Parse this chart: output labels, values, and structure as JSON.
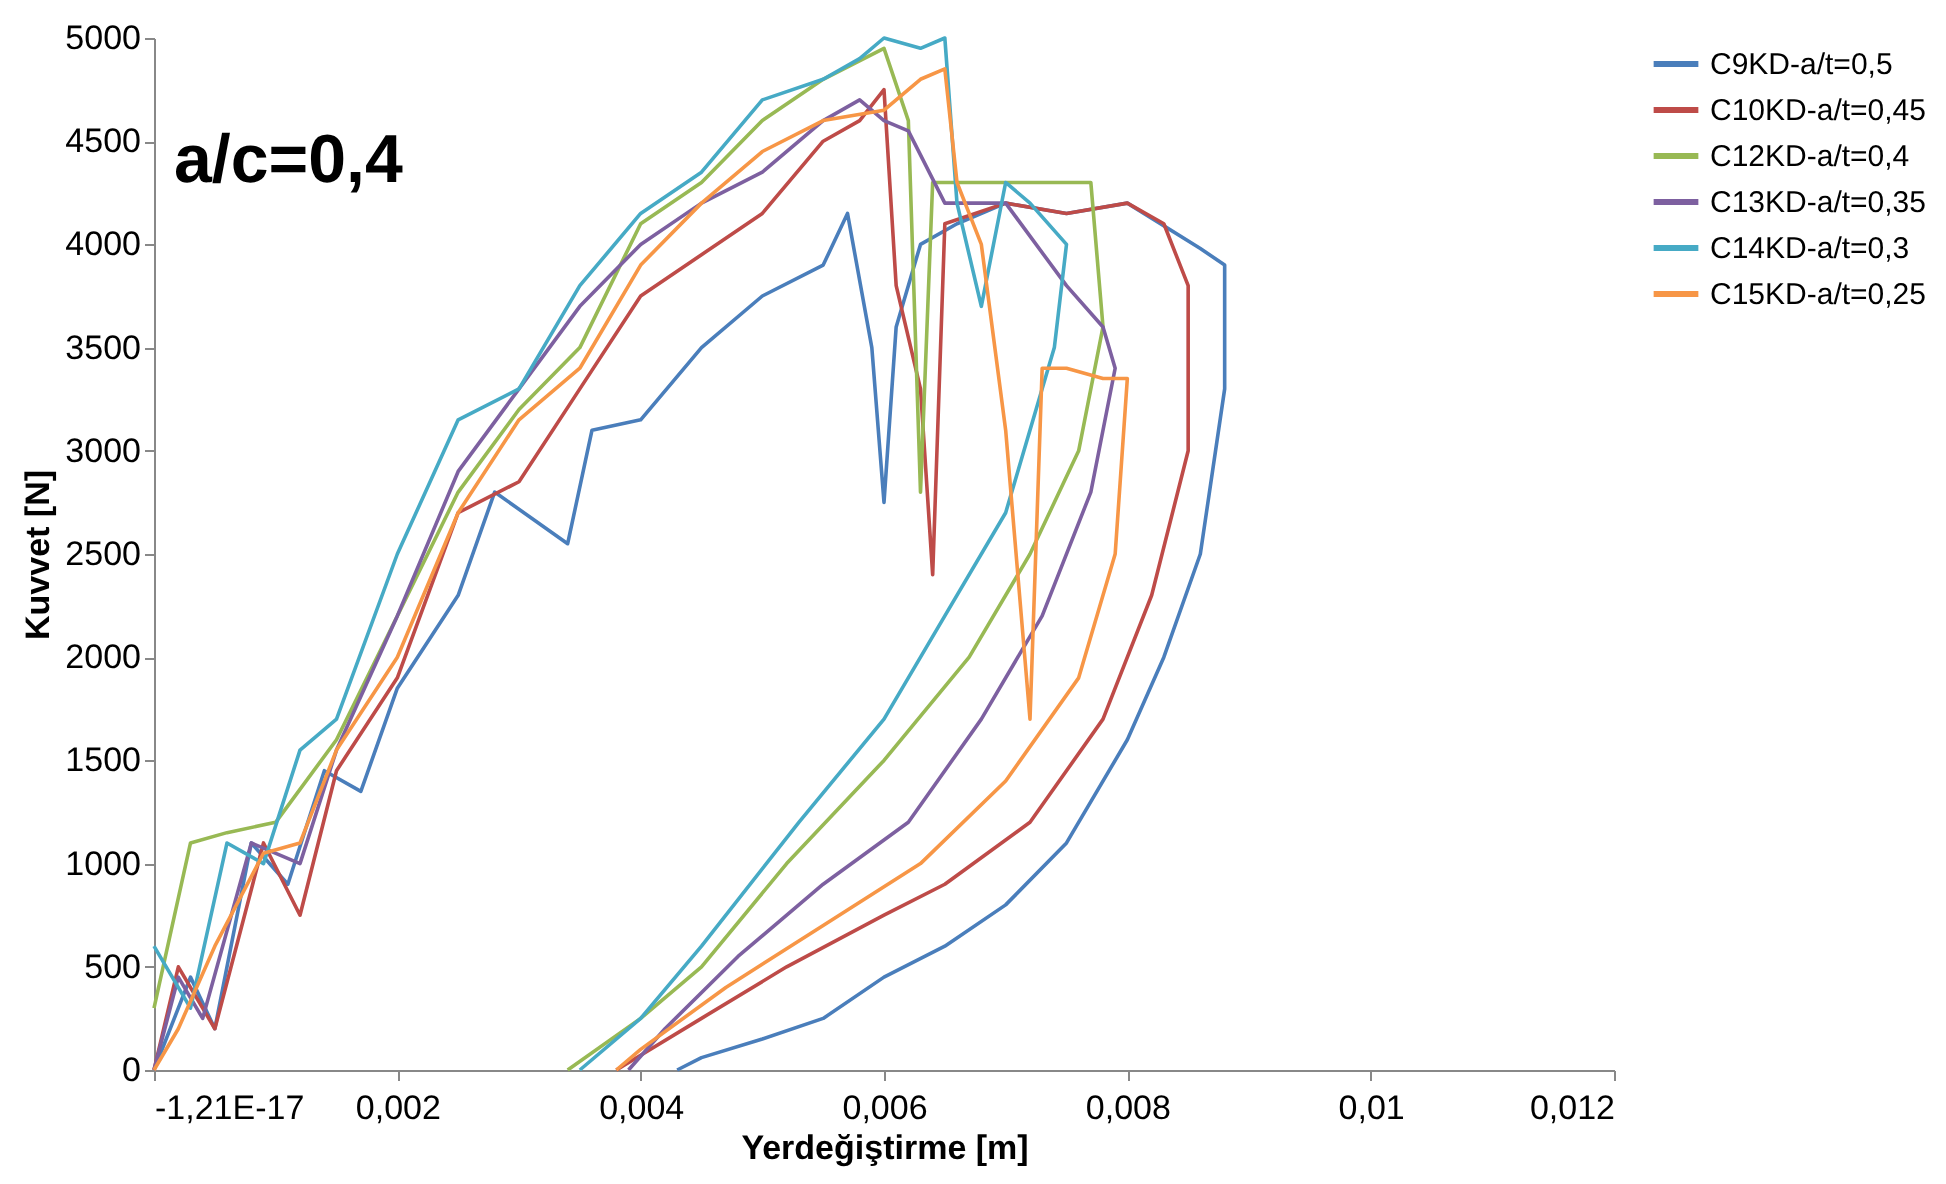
{
  "chart_data": {
    "type": "line",
    "xlabel": "Yerdeğiştirme [m]",
    "ylabel": "Kuvvet [N]",
    "annotations": [
      "a/c=0,4"
    ],
    "xlim": [
      -1.21e-17,
      0.012
    ],
    "xticks": [
      {
        "value": -1.21e-17,
        "label": "-1,21E-17"
      },
      {
        "value": 0.002,
        "label": "0,002"
      },
      {
        "value": 0.004,
        "label": "0,004"
      },
      {
        "value": 0.006,
        "label": "0,006"
      },
      {
        "value": 0.008,
        "label": "0,008"
      },
      {
        "value": 0.01,
        "label": "0,01"
      },
      {
        "value": 0.012,
        "label": "0,012"
      }
    ],
    "ylim": [
      0,
      5000
    ],
    "yticks": [
      0,
      500,
      1000,
      1500,
      2000,
      2500,
      3000,
      3500,
      4000,
      4500,
      5000
    ],
    "grid": false,
    "legend": "right",
    "marker": "none",
    "line_style": "solid",
    "series": [
      {
        "name": "C9KD-a/t=0,5",
        "color": "#4a7ebb",
        "x": [
          0,
          0.0003,
          0.0005,
          0.0008,
          0.0011,
          0.0014,
          0.0017,
          0.002,
          0.0025,
          0.0028,
          0.0034,
          0.0036,
          0.004,
          0.0045,
          0.005,
          0.0055,
          0.0057,
          0.0059,
          0.006,
          0.0061,
          0.0063,
          0.0066,
          0.007,
          0.0075,
          0.008,
          0.0086,
          0.0088,
          0.0088,
          0.0086,
          0.0083,
          0.008,
          0.0075,
          0.007,
          0.0065,
          0.006,
          0.0055,
          0.005,
          0.0045,
          0.0043
        ],
        "values": [
          0,
          450,
          200,
          1100,
          900,
          1450,
          1350,
          1850,
          2300,
          2800,
          2550,
          3100,
          3150,
          3500,
          3750,
          3900,
          4150,
          3500,
          2750,
          3600,
          4000,
          4100,
          4200,
          4150,
          4200,
          3980,
          3900,
          3300,
          2500,
          2000,
          1600,
          1100,
          800,
          600,
          450,
          250,
          150,
          60,
          0
        ]
      },
      {
        "name": "C10KD-a/t=0,45",
        "color": "#be4b48",
        "x": [
          0,
          0.0002,
          0.0005,
          0.0009,
          0.0012,
          0.0015,
          0.002,
          0.0025,
          0.003,
          0.0035,
          0.004,
          0.0045,
          0.005,
          0.0055,
          0.0058,
          0.006,
          0.0061,
          0.0063,
          0.0064,
          0.0065,
          0.007,
          0.0075,
          0.008,
          0.0083,
          0.0085,
          0.0085,
          0.0082,
          0.0078,
          0.0072,
          0.0065,
          0.006,
          0.0052,
          0.0045,
          0.0038
        ],
        "values": [
          0,
          500,
          200,
          1100,
          750,
          1450,
          1900,
          2700,
          2850,
          3300,
          3750,
          3950,
          4150,
          4500,
          4600,
          4750,
          3800,
          3300,
          2400,
          4100,
          4200,
          4150,
          4200,
          4100,
          3800,
          3000,
          2300,
          1700,
          1200,
          900,
          750,
          500,
          250,
          0
        ]
      },
      {
        "name": "C12KD-a/t=0,4",
        "color": "#98b954",
        "x": [
          0,
          0.0003,
          0.0006,
          0.001,
          0.0015,
          0.002,
          0.0025,
          0.003,
          0.0035,
          0.004,
          0.0045,
          0.005,
          0.0055,
          0.006,
          0.0062,
          0.0063,
          0.0064,
          0.007,
          0.0077,
          0.0078,
          0.0076,
          0.0072,
          0.0067,
          0.006,
          0.0052,
          0.0045,
          0.004,
          0.0034
        ],
        "values": [
          300,
          1100,
          1150,
          1200,
          1600,
          2200,
          2800,
          3200,
          3500,
          4100,
          4300,
          4600,
          4800,
          4950,
          4600,
          2800,
          4300,
          4300,
          4300,
          3600,
          3000,
          2500,
          2000,
          1500,
          1000,
          500,
          250,
          0
        ]
      },
      {
        "name": "C13KD-a/t=0,35",
        "color": "#7d60a0",
        "x": [
          0,
          0.0002,
          0.0004,
          0.0008,
          0.0012,
          0.0015,
          0.002,
          0.0025,
          0.003,
          0.0035,
          0.004,
          0.0045,
          0.005,
          0.0055,
          0.0058,
          0.006,
          0.0062,
          0.0065,
          0.007,
          0.0075,
          0.0078,
          0.0079,
          0.0077,
          0.0073,
          0.0068,
          0.0062,
          0.0055,
          0.0048,
          0.0042,
          0.0039
        ],
        "values": [
          0,
          450,
          250,
          1100,
          1000,
          1550,
          2200,
          2900,
          3300,
          3700,
          4000,
          4200,
          4350,
          4600,
          4700,
          4600,
          4550,
          4200,
          4200,
          3800,
          3600,
          3400,
          2800,
          2200,
          1700,
          1200,
          900,
          550,
          200,
          0
        ]
      },
      {
        "name": "C14KD-a/t=0,3",
        "color": "#46aac5",
        "x": [
          0,
          0.0003,
          0.0006,
          0.0009,
          0.0012,
          0.0015,
          0.002,
          0.0025,
          0.003,
          0.0035,
          0.004,
          0.0045,
          0.005,
          0.0055,
          0.0058,
          0.006,
          0.0063,
          0.0065,
          0.0066,
          0.0068,
          0.007,
          0.0072,
          0.0075,
          0.0074,
          0.007,
          0.0065,
          0.006,
          0.0053,
          0.0045,
          0.004,
          0.0035
        ],
        "values": [
          600,
          300,
          1100,
          1000,
          1550,
          1700,
          2500,
          3150,
          3300,
          3800,
          4150,
          4350,
          4700,
          4800,
          4900,
          5000,
          4950,
          5000,
          4200,
          3700,
          4300,
          4200,
          4000,
          3500,
          2700,
          2200,
          1700,
          1200,
          600,
          250,
          0
        ]
      },
      {
        "name": "C15KD-a/t=0,25",
        "color": "#f79646",
        "x": [
          0,
          0.0002,
          0.0005,
          0.0009,
          0.0012,
          0.0015,
          0.002,
          0.0025,
          0.003,
          0.0035,
          0.004,
          0.0045,
          0.005,
          0.0055,
          0.006,
          0.0063,
          0.0065,
          0.0066,
          0.0068,
          0.007,
          0.0072,
          0.0073,
          0.0075,
          0.0078,
          0.008,
          0.0079,
          0.0076,
          0.007,
          0.0063,
          0.0055,
          0.0047,
          0.004,
          0.0038
        ],
        "values": [
          0,
          200,
          600,
          1050,
          1100,
          1550,
          2000,
          2700,
          3150,
          3400,
          3900,
          4200,
          4450,
          4600,
          4650,
          4800,
          4850,
          4300,
          4000,
          3100,
          1700,
          3400,
          3400,
          3350,
          3350,
          2500,
          1900,
          1400,
          1000,
          700,
          400,
          100,
          0
        ]
      }
    ]
  }
}
